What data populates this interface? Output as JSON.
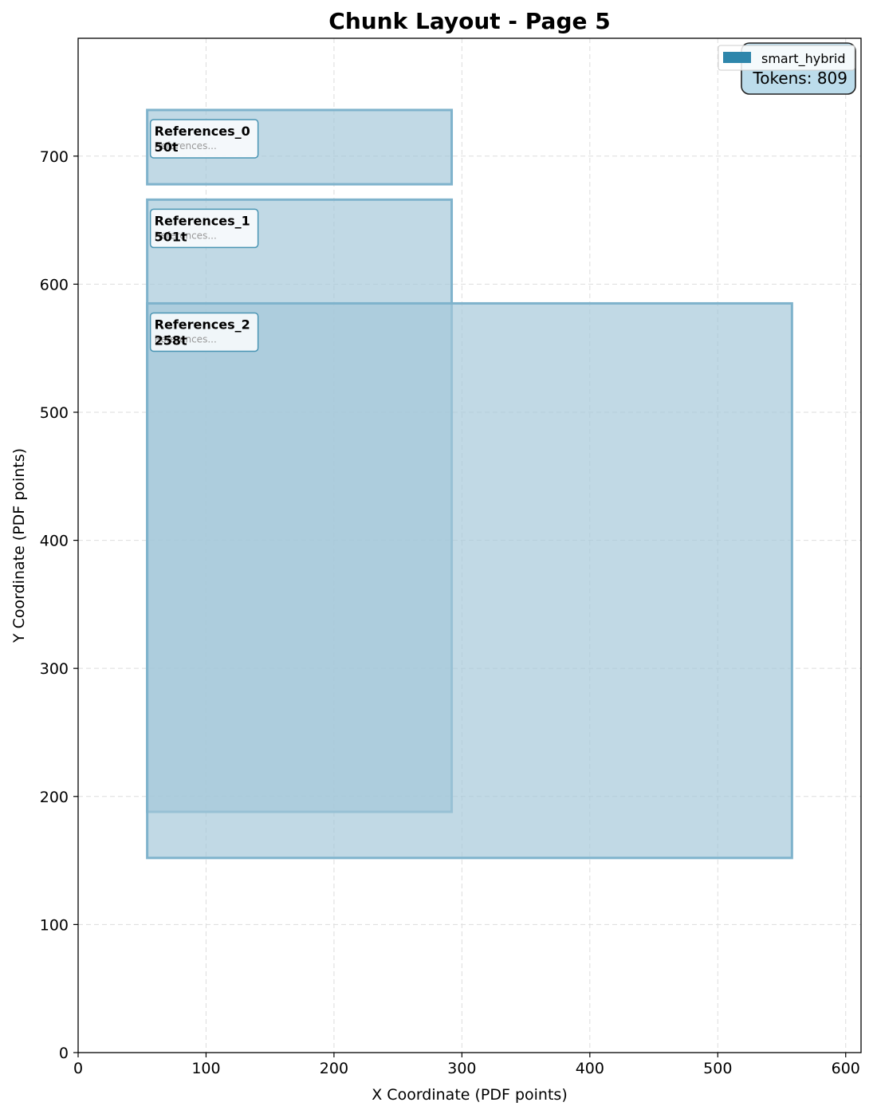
{
  "chart_data": {
    "type": "layout",
    "title": "Chunk Layout - Page 5",
    "xlabel": "X Coordinate (PDF points)",
    "ylabel": "Y Coordinate (PDF points)",
    "xlim": [
      0,
      612
    ],
    "ylim": [
      0,
      792
    ],
    "xticks": [
      0,
      100,
      200,
      300,
      400,
      500,
      600
    ],
    "yticks": [
      0,
      100,
      200,
      300,
      400,
      500,
      600,
      700
    ],
    "grid": true,
    "legend": {
      "placement": "top-right",
      "entries": [
        {
          "name": "smart_hybrid",
          "color": "#2e86ab"
        }
      ]
    },
    "stats": {
      "text": "Tokens: 809"
    },
    "fill_color": "#a3c7d8",
    "edge_color": "#7fb3cc",
    "chunks": [
      {
        "label": "References_0",
        "tokens": "50t",
        "preview": "References...",
        "x0": 54,
        "y0": 678,
        "x1": 292,
        "y1": 736
      },
      {
        "label": "References_1",
        "tokens": "501t",
        "preview": "References...",
        "x0": 54,
        "y0": 188,
        "x1": 292,
        "y1": 666
      },
      {
        "label": "References_2",
        "tokens": "258t",
        "preview": "References...",
        "x0": 54,
        "y0": 152,
        "x1": 558,
        "y1": 585
      }
    ]
  }
}
